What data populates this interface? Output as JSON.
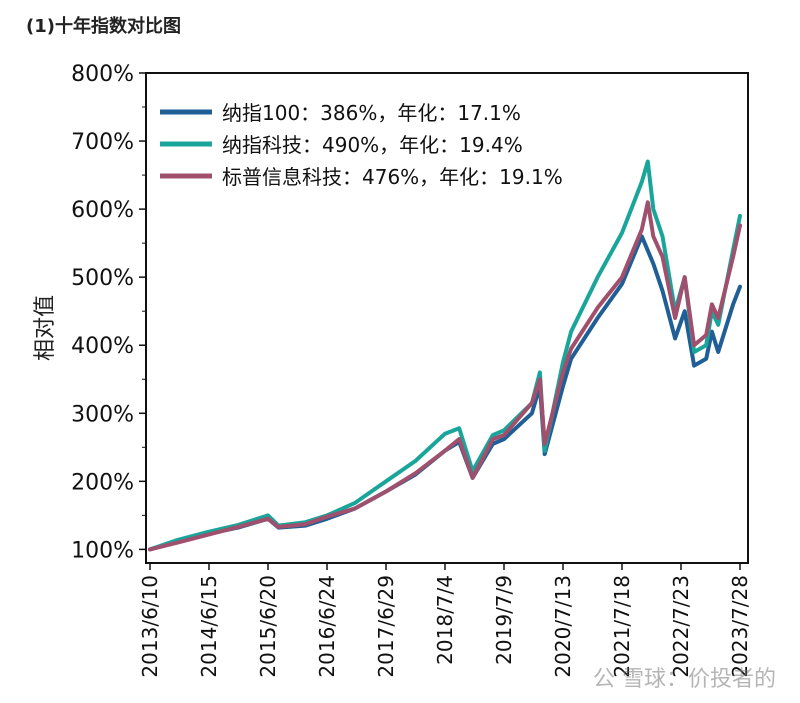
{
  "caption": "(1)十年指数对比图",
  "watermark": "公 雪球：价投者的",
  "colors": {
    "nasdaq100": "#1f5f96",
    "nasdaq_tech": "#1aa59a",
    "sp_it": "#a0506c"
  },
  "chart_data": {
    "type": "line",
    "title": "",
    "xlabel": "",
    "ylabel": "相对值",
    "ylim": [
      80,
      800
    ],
    "yticks": [
      100,
      200,
      300,
      400,
      500,
      600,
      700,
      800
    ],
    "ytick_labels": [
      "100%",
      "200%",
      "300%",
      "400%",
      "500%",
      "600%",
      "700%",
      "800%"
    ],
    "xlim": [
      "2013-06-10",
      "2023-07-28"
    ],
    "xticks": [
      "2013-06-10",
      "2014-06-15",
      "2015-06-20",
      "2016-06-24",
      "2017-06-29",
      "2018-07-04",
      "2019-07-09",
      "2020-07-13",
      "2021-07-18",
      "2022-07-23",
      "2023-07-28"
    ],
    "xtick_labels": [
      "2013/6/10",
      "2014/6/15",
      "2015/6/20",
      "2016/6/24",
      "2017/6/29",
      "2018/7/4",
      "2019/7/9",
      "2020/7/13",
      "2021/7/18",
      "2022/7/23",
      "2023/7/28"
    ],
    "grid": false,
    "legend_position": "top-left",
    "series": [
      {
        "key": "nasdaq100",
        "name": "纳指100：386%，年化：17.1%",
        "x": [
          "2013-06-10",
          "2013-12-01",
          "2014-06-15",
          "2014-12-15",
          "2015-06-20",
          "2015-08-25",
          "2016-02-10",
          "2016-06-24",
          "2016-12-15",
          "2017-06-29",
          "2017-12-31",
          "2018-07-04",
          "2018-10-01",
          "2018-12-24",
          "2019-04-30",
          "2019-07-09",
          "2019-12-31",
          "2020-02-19",
          "2020-03-20",
          "2020-07-13",
          "2020-09-02",
          "2021-02-15",
          "2021-07-18",
          "2021-11-19",
          "2022-01-30",
          "2022-03-29",
          "2022-06-16",
          "2022-08-15",
          "2022-10-13",
          "2022-12-28",
          "2023-02-02",
          "2023-03-13",
          "2023-06-15",
          "2023-07-28"
        ],
        "values": [
          100,
          112,
          123,
          132,
          145,
          132,
          135,
          145,
          160,
          185,
          210,
          245,
          258,
          205,
          255,
          262,
          300,
          340,
          240,
          340,
          380,
          440,
          490,
          560,
          520,
          480,
          410,
          450,
          370,
          380,
          420,
          390,
          460,
          486
        ]
      },
      {
        "key": "nasdaq_tech",
        "name": "纳指科技：490%，年化：19.4%",
        "x": [
          "2013-06-10",
          "2013-12-01",
          "2014-06-15",
          "2014-12-15",
          "2015-06-20",
          "2015-08-25",
          "2016-02-10",
          "2016-06-24",
          "2016-12-15",
          "2017-06-29",
          "2017-12-31",
          "2018-07-04",
          "2018-10-01",
          "2018-12-24",
          "2019-04-30",
          "2019-07-09",
          "2019-12-31",
          "2020-02-19",
          "2020-03-20",
          "2020-07-13",
          "2020-09-02",
          "2021-02-15",
          "2021-07-18",
          "2021-11-19",
          "2021-12-27",
          "2022-01-30",
          "2022-03-29",
          "2022-06-16",
          "2022-08-15",
          "2022-10-13",
          "2022-12-28",
          "2023-02-02",
          "2023-03-13",
          "2023-06-15",
          "2023-07-28"
        ],
        "values": [
          100,
          114,
          126,
          136,
          150,
          135,
          140,
          150,
          168,
          200,
          230,
          270,
          278,
          215,
          268,
          275,
          315,
          360,
          245,
          375,
          420,
          500,
          565,
          640,
          670,
          600,
          560,
          450,
          500,
          390,
          400,
          450,
          430,
          540,
          590
        ]
      },
      {
        "key": "sp_it",
        "name": "标普信息科技：476%，年化：19.1%",
        "x": [
          "2013-06-10",
          "2013-12-01",
          "2014-06-15",
          "2014-12-15",
          "2015-06-20",
          "2015-08-25",
          "2016-02-10",
          "2016-06-24",
          "2016-12-15",
          "2017-06-29",
          "2017-12-31",
          "2018-07-04",
          "2018-10-01",
          "2018-12-24",
          "2019-04-30",
          "2019-07-09",
          "2019-12-31",
          "2020-02-19",
          "2020-03-20",
          "2020-07-13",
          "2020-09-02",
          "2021-02-15",
          "2021-07-18",
          "2021-11-19",
          "2021-12-27",
          "2022-01-30",
          "2022-03-29",
          "2022-06-16",
          "2022-08-15",
          "2022-10-13",
          "2022-12-28",
          "2023-02-02",
          "2023-03-13",
          "2023-06-15",
          "2023-07-28"
        ],
        "values": [
          100,
          110,
          122,
          133,
          145,
          133,
          137,
          148,
          160,
          185,
          212,
          245,
          262,
          205,
          262,
          268,
          315,
          350,
          255,
          360,
          395,
          455,
          500,
          570,
          610,
          560,
          530,
          440,
          500,
          400,
          415,
          460,
          440,
          530,
          576
        ]
      }
    ]
  }
}
